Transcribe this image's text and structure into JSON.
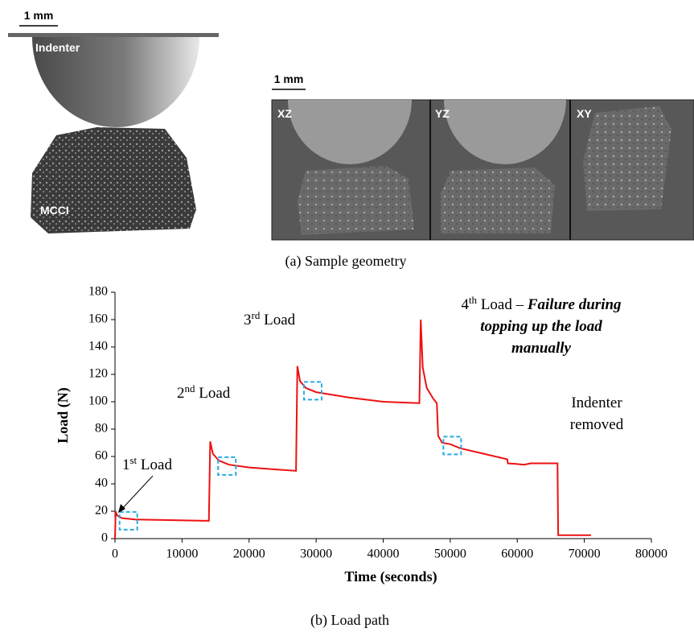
{
  "figure": {
    "scale_bar_left": "1 mm",
    "indenter_label": "Indenter",
    "sample_label": "MCCI",
    "scale_bar_right": "1 mm",
    "views": [
      "XZ",
      "YZ",
      "XY"
    ],
    "caption_a": "(a) Sample geometry",
    "caption_b": "(b) Load path"
  },
  "chart_data": {
    "type": "line",
    "x_label": "Time (seconds)",
    "y_label": "Load (N)",
    "xlim": [
      0,
      80000
    ],
    "ylim": [
      0,
      180
    ],
    "xticks": [
      0,
      10000,
      20000,
      30000,
      40000,
      50000,
      60000,
      70000,
      80000
    ],
    "yticks": [
      0,
      20,
      40,
      60,
      80,
      100,
      120,
      140,
      160,
      180
    ],
    "series": [
      {
        "color": "#ee1111",
        "x": [
          0,
          100,
          300,
          1000,
          3000,
          8000,
          14000,
          14200,
          14600,
          15500,
          17000,
          20000,
          24000,
          27000,
          27200,
          27600,
          28500,
          30000,
          35000,
          40000,
          45400,
          45600,
          45900,
          46500,
          47500,
          48000,
          48200,
          48800,
          50000,
          51500,
          55000,
          58500,
          58600,
          60000,
          61000,
          62000,
          66000,
          66100,
          71000
        ],
        "values": [
          0,
          20,
          17,
          15,
          14,
          13.5,
          13,
          71,
          62,
          57,
          54,
          52,
          50.5,
          49.5,
          126,
          115,
          110,
          107,
          103,
          100,
          99,
          160,
          125,
          110,
          102,
          99,
          75,
          70,
          69,
          66,
          62,
          58,
          55,
          54.5,
          54,
          55,
          55,
          2.5,
          2.5
        ]
      }
    ],
    "highlights": {
      "color": "#29abe2",
      "x": [
        2000,
        16700,
        29500,
        50300
      ],
      "values": [
        13,
        53,
        108,
        68
      ]
    },
    "annotations": [
      {
        "lines": [
          [
            {
              "text": "1"
            },
            {
              "text": "st",
              "sup": true
            },
            {
              "text": " Load"
            }
          ]
        ]
      },
      {
        "lines": [
          [
            {
              "text": "2"
            },
            {
              "text": "nd",
              "sup": true
            },
            {
              "text": " Load"
            }
          ]
        ]
      },
      {
        "lines": [
          [
            {
              "text": "3"
            },
            {
              "text": "rd",
              "sup": true
            },
            {
              "text": "  Load"
            }
          ]
        ]
      },
      {
        "lines": [
          [
            {
              "text": "4"
            },
            {
              "text": "th",
              "sup": true
            },
            {
              "text": "  Load – "
            },
            {
              "text": "Failure during",
              "emph": true
            }
          ],
          [
            {
              "text": "topping up the load",
              "emph": true
            }
          ],
          [
            {
              "text": "manually",
              "emph": true
            }
          ]
        ]
      },
      {
        "lines": [
          [
            {
              "text": "Indenter"
            }
          ],
          [
            {
              "text": "removed"
            }
          ]
        ]
      }
    ]
  }
}
